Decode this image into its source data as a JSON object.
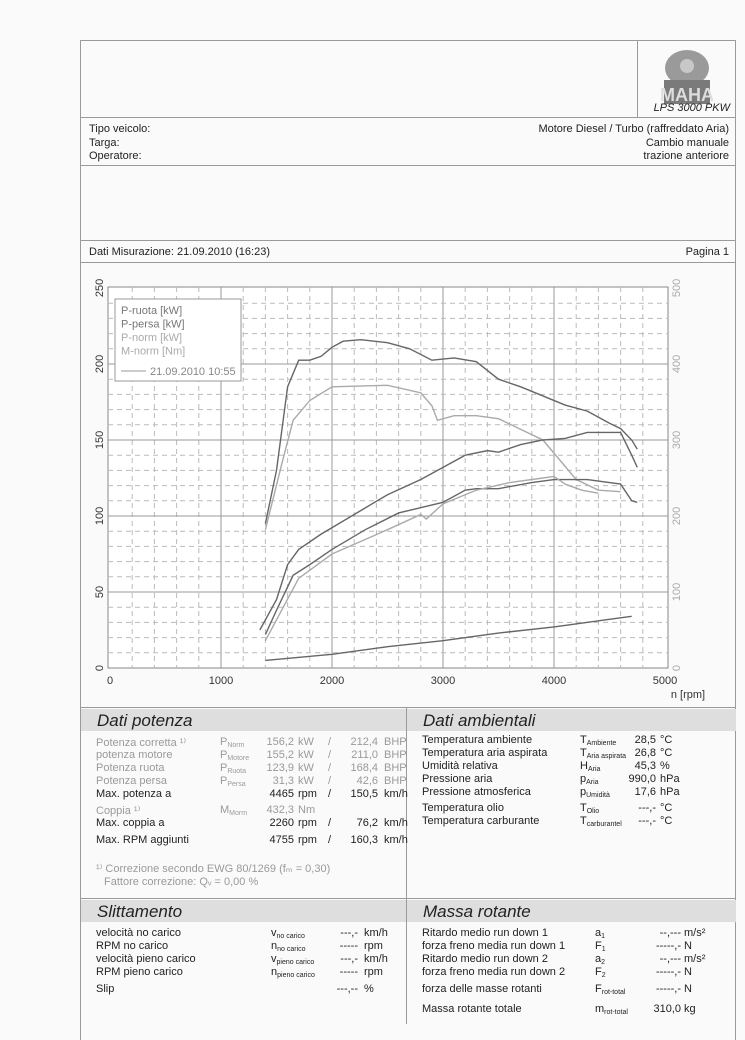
{
  "header": {
    "logo_text": "MAHA",
    "model": "LPS 3000 PKW"
  },
  "vehicle": {
    "labels": [
      "Tipo veicolo:",
      "Targa:",
      "Operatore:"
    ],
    "details": [
      "Motore Diesel / Turbo (raffreddato Aria)",
      "Cambio manuale",
      "trazione anteriore"
    ]
  },
  "measurement": {
    "label": "Dati Misurazione: 21.09.2010 (16:23)",
    "page": "Pagina 1"
  },
  "chart_data": {
    "type": "line",
    "xlabel": "n [rpm]",
    "xlim": [
      0,
      5000
    ],
    "ylim_left": [
      0,
      250
    ],
    "ylim_right": [
      0,
      500
    ],
    "x_ticks": [
      "0",
      "1000",
      "2000",
      "3000",
      "4000",
      "5000"
    ],
    "y_ticks_left": [
      "0",
      "50",
      "100",
      "150",
      "200",
      "250"
    ],
    "y_ticks_right": [
      "0",
      "100",
      "200",
      "300",
      "400",
      "500"
    ],
    "grid": true,
    "legend_position": "top-left",
    "legend": {
      "entries": [
        "P-ruota [kW]",
        "P-persa [kW]",
        "P-norm [kW]",
        "M-norm [Nm]"
      ],
      "run": "21.09.2010 10:55"
    },
    "series": [
      {
        "name": "M-norm [Nm]",
        "axis": "right",
        "color": "#666",
        "points": [
          [
            1400,
            190
          ],
          [
            1500,
            260
          ],
          [
            1600,
            370
          ],
          [
            1700,
            405
          ],
          [
            1800,
            405
          ],
          [
            1900,
            410
          ],
          [
            2000,
            422
          ],
          [
            2100,
            430
          ],
          [
            2260,
            432
          ],
          [
            2500,
            428
          ],
          [
            2700,
            420
          ],
          [
            2900,
            405
          ],
          [
            3100,
            408
          ],
          [
            3300,
            403
          ],
          [
            3500,
            380
          ],
          [
            3700,
            370
          ],
          [
            3900,
            358
          ],
          [
            4100,
            346
          ],
          [
            4300,
            338
          ],
          [
            4500,
            322
          ],
          [
            4600,
            315
          ],
          [
            4700,
            300
          ],
          [
            4750,
            288
          ]
        ]
      },
      {
        "axis": "right",
        "color": "#aaa",
        "points": [
          [
            1400,
            182
          ],
          [
            1550,
            270
          ],
          [
            1650,
            326
          ],
          [
            1800,
            352
          ],
          [
            2000,
            370
          ],
          [
            2500,
            372
          ],
          [
            2800,
            362
          ],
          [
            2900,
            345
          ],
          [
            2950,
            326
          ],
          [
            3100,
            332
          ],
          [
            3300,
            332
          ],
          [
            3500,
            328
          ],
          [
            3700,
            314
          ],
          [
            3900,
            300
          ],
          [
            4050,
            274
          ],
          [
            4200,
            248
          ],
          [
            4400,
            234
          ],
          [
            4600,
            232
          ]
        ]
      },
      {
        "name": "P-norm [kW]",
        "axis": "left",
        "color": "#666",
        "points": [
          [
            1350,
            25
          ],
          [
            1500,
            45
          ],
          [
            1600,
            68
          ],
          [
            1700,
            78
          ],
          [
            1900,
            88
          ],
          [
            2200,
            101
          ],
          [
            2500,
            114
          ],
          [
            2800,
            124
          ],
          [
            3000,
            132
          ],
          [
            3200,
            140
          ],
          [
            3400,
            143
          ],
          [
            3500,
            142
          ],
          [
            3700,
            147
          ],
          [
            3900,
            150
          ],
          [
            4100,
            151
          ],
          [
            4300,
            155
          ],
          [
            4500,
            155
          ],
          [
            4600,
            155
          ],
          [
            4700,
            140
          ],
          [
            4750,
            132
          ]
        ]
      },
      {
        "name": "P-ruota [kW]",
        "axis": "left",
        "color": "#666",
        "points": [
          [
            1400,
            22
          ],
          [
            1500,
            38
          ],
          [
            1650,
            61
          ],
          [
            1800,
            68
          ],
          [
            2000,
            78
          ],
          [
            2300,
            91
          ],
          [
            2600,
            102
          ],
          [
            3000,
            109
          ],
          [
            3200,
            117
          ],
          [
            3300,
            118
          ],
          [
            3500,
            118
          ],
          [
            3800,
            122
          ],
          [
            4000,
            124
          ],
          [
            4300,
            124
          ],
          [
            4500,
            122
          ],
          [
            4600,
            121
          ],
          [
            4700,
            110
          ],
          [
            4750,
            109
          ]
        ]
      },
      {
        "axis": "left",
        "color": "#aaa",
        "points": [
          [
            1400,
            18
          ],
          [
            1700,
            59
          ],
          [
            2000,
            75
          ],
          [
            2500,
            91
          ],
          [
            2800,
            101
          ],
          [
            2850,
            98
          ],
          [
            3000,
            108
          ],
          [
            3300,
            117
          ],
          [
            3600,
            122
          ],
          [
            3900,
            125
          ],
          [
            4000,
            126
          ],
          [
            4100,
            121
          ],
          [
            4250,
            117
          ],
          [
            4400,
            115
          ]
        ]
      },
      {
        "name": "P-persa [kW]",
        "axis": "left",
        "color": "#666",
        "points": [
          [
            1400,
            5
          ],
          [
            2000,
            9
          ],
          [
            2500,
            14
          ],
          [
            3000,
            18
          ],
          [
            3500,
            23
          ],
          [
            4000,
            27
          ],
          [
            4500,
            32
          ],
          [
            4700,
            34
          ]
        ]
      }
    ]
  },
  "power": {
    "title": "Dati potenza",
    "rows": [
      {
        "label": "Potenza corretta ¹⁾",
        "sym": "P",
        "sub": "Norm",
        "val": "156,2",
        "unit": "kW",
        "sep": "/",
        "val2": "212,4",
        "unit2": "BHP",
        "gray": true
      },
      {
        "label": "potenza motore",
        "sym": "P",
        "sub": "Motore",
        "val": "155,2",
        "unit": "kW",
        "sep": "/",
        "val2": "211,0",
        "unit2": "BHP",
        "gray": true
      },
      {
        "label": "Potenza ruota",
        "sym": "P",
        "sub": "Ruota",
        "val": "123,9",
        "unit": "kW",
        "sep": "/",
        "val2": "168,4",
        "unit2": "BHP",
        "gray": true
      },
      {
        "label": "Potenza persa",
        "sym": "P",
        "sub": "Persa",
        "val": "31,3",
        "unit": "kW",
        "sep": "/",
        "val2": "42,6",
        "unit2": "BHP",
        "gray": true
      },
      {
        "label": "Max. potenza a",
        "val": "4465",
        "unit": "rpm",
        "sep": "/",
        "val2": "150,5",
        "unit2": "km/h"
      },
      {
        "label": "Coppia ¹⁾",
        "sym": "M",
        "sub": "Morm",
        "val": "432,3",
        "unit": "Nm",
        "gray": true
      },
      {
        "label": "Max. coppia a",
        "val": "2260",
        "unit": "rpm",
        "sep": "/",
        "val2": "76,2",
        "unit2": "km/h"
      },
      {
        "label": "Max. RPM aggiunti",
        "val": "4755",
        "unit": "rpm",
        "sep": "/",
        "val2": "160,3",
        "unit2": "km/h"
      }
    ],
    "note1": "¹⁾ Correzione secondo EWG 80/1269 (fₘ =  0,30)",
    "note2": "Fattore correzione: Qᵥ =   0,00 %"
  },
  "ambient": {
    "title": "Dati ambientali",
    "rows": [
      {
        "label": "Temperatura ambiente",
        "sym": "T",
        "sub": "Ambiente",
        "val": "28,5",
        "unit": "°C"
      },
      {
        "label": "Temperatura aria aspirata",
        "sym": "T",
        "sub": "Aria aspirata",
        "val": "26,8",
        "unit": "°C"
      },
      {
        "label": "Umidità relativa",
        "sym": "H",
        "sub": "Aria",
        "val": "45,3",
        "unit": "%"
      },
      {
        "label": "Pressione aria",
        "sym": "p",
        "sub": "Aria",
        "val": "990,0",
        "unit": "hPa"
      },
      {
        "label": "Pressione atmosferica",
        "sym": "p",
        "sub": "Umidità",
        "val": "17,6",
        "unit": "hPa"
      },
      {
        "label": "Temperatura olio",
        "sym": "T",
        "sub": "Olio",
        "val": "---,-",
        "unit": "°C"
      },
      {
        "label": "Temperatura carburante",
        "sym": "T",
        "sub": "carburantel",
        "val": "---,-",
        "unit": "°C"
      }
    ]
  },
  "slip": {
    "title": "Slittamento",
    "rows": [
      {
        "label": "velocità no carico",
        "sym": "v",
        "sub": "no carico",
        "val": "---,-",
        "unit": "km/h"
      },
      {
        "label": "RPM no carico",
        "sym": "n",
        "sub": "no carico",
        "val": "-----",
        "unit": "rpm"
      },
      {
        "label": "velocità pieno carico",
        "sym": "v",
        "sub": "pieno carico",
        "val": "---,-",
        "unit": "km/h"
      },
      {
        "label": "RPM pieno carico",
        "sym": "n",
        "sub": "pieno carico",
        "val": "-----",
        "unit": "rpm"
      },
      {
        "label": "Slip",
        "val": "---,--",
        "unit": "%"
      }
    ]
  },
  "mass": {
    "title": "Massa rotante",
    "rows": [
      {
        "label": "Ritardo medio run down 1",
        "sym": "a",
        "sub": "1",
        "val": "--,---",
        "unit": "m/s²"
      },
      {
        "label": "forza freno media run down 1",
        "sym": "F",
        "sub": "1",
        "val": "-----,-",
        "unit": "N"
      },
      {
        "label": "Ritardo medio run down 2",
        "sym": "a",
        "sub": "2",
        "val": "--,---",
        "unit": "m/s²"
      },
      {
        "label": "forza freno media run down 2",
        "sym": "F",
        "sub": "2",
        "val": "-----,-",
        "unit": "N"
      },
      {
        "label": "forza delle masse rotanti",
        "sym": "F",
        "sub": "rot-total",
        "val": "-----,-",
        "unit": "N"
      },
      {
        "label": "Massa rotante totale",
        "sym": "m",
        "sub": "rot-total",
        "val": "310,0",
        "unit": "kg"
      }
    ]
  }
}
